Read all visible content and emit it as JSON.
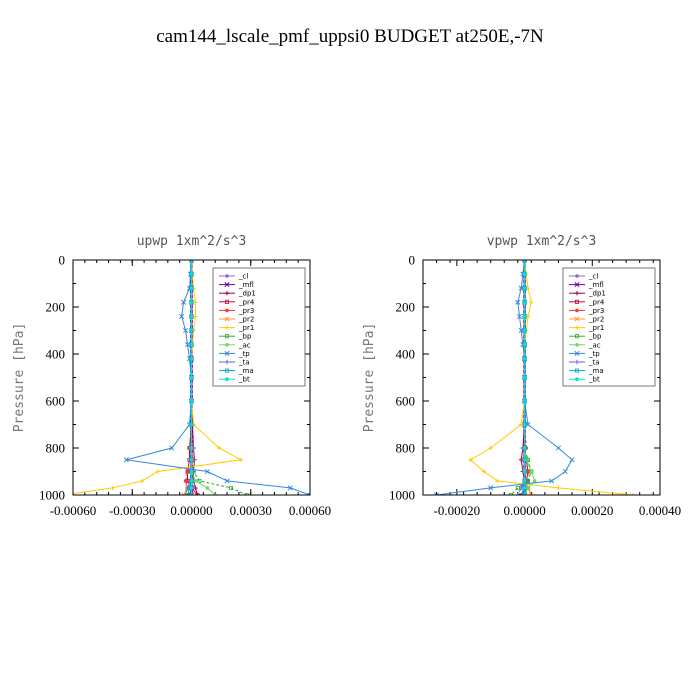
{
  "suptitle": "cam144_lscale_pmf_uppsi0  BUDGET at250E,-7N",
  "chart_data": [
    {
      "type": "line",
      "title": "upwp   1xm^2/s^3",
      "ylabel": "Pressure [hPa]",
      "xlabel": "",
      "y_inverted": true,
      "ylim": [
        0,
        1000
      ],
      "yticks": [
        0,
        200,
        400,
        600,
        800,
        1000
      ],
      "xlim": [
        -0.0006,
        0.0006
      ],
      "xticks": [
        -0.0006,
        -0.0003,
        0.0,
        0.0003,
        0.0006
      ],
      "xtick_labels": [
        "-0.00060",
        "-0.00030",
        "0.00000",
        "0.00030",
        "0.00060"
      ],
      "legend_position": "top-right",
      "series": [
        {
          "name": "_cl",
          "color": "#9966cc",
          "x": [
            0,
            0,
            0,
            0,
            0,
            0,
            0,
            0,
            0,
            0,
            0,
            0,
            0,
            0,
            0,
            0,
            0
          ],
          "y": [
            0,
            60,
            120,
            180,
            240,
            300,
            360,
            420,
            500,
            600,
            700,
            800,
            850,
            900,
            940,
            970,
            1000
          ]
        },
        {
          "name": "_mfl",
          "color": "#660099",
          "x": [
            0,
            0,
            0,
            0,
            0,
            0,
            0,
            0,
            0,
            0,
            0,
            0,
            0,
            0,
            0,
            0,
            0
          ],
          "y": [
            0,
            60,
            120,
            180,
            240,
            300,
            360,
            420,
            500,
            600,
            700,
            800,
            850,
            900,
            940,
            970,
            1000
          ]
        },
        {
          "name": "_dp1",
          "color": "#990055",
          "x": [
            0,
            0,
            0,
            0,
            0,
            0,
            0,
            0,
            0,
            0,
            5e-06,
            1e-05,
            1.5e-05,
            1e-05,
            1e-05,
            2e-05,
            3e-05
          ],
          "y": [
            0,
            60,
            120,
            180,
            240,
            300,
            360,
            420,
            500,
            600,
            700,
            800,
            850,
            900,
            940,
            970,
            1000
          ]
        },
        {
          "name": "_pr4",
          "color": "#cc0033",
          "x": [
            0,
            0,
            0,
            0,
            0,
            0,
            0,
            0,
            0,
            0,
            0,
            -1e-05,
            -1e-05,
            -2e-05,
            -2e-05,
            0,
            3e-05
          ],
          "y": [
            0,
            60,
            120,
            180,
            240,
            300,
            360,
            420,
            500,
            600,
            700,
            800,
            850,
            900,
            940,
            970,
            1000
          ]
        },
        {
          "name": "_pr3",
          "color": "#ff3333",
          "x": [
            0,
            0,
            0,
            0,
            0,
            0,
            0,
            0,
            0,
            0,
            0,
            -1e-05,
            1e-05,
            -2e-05,
            -3e-05,
            -2e-05,
            -1e-05
          ],
          "y": [
            0,
            60,
            120,
            180,
            240,
            300,
            360,
            420,
            500,
            600,
            700,
            800,
            850,
            900,
            940,
            970,
            1000
          ]
        },
        {
          "name": "_pr2",
          "color": "#ff9933",
          "x": [
            0,
            0,
            0,
            0,
            0,
            0,
            0,
            0,
            0,
            0,
            0,
            0,
            0,
            0,
            0,
            -2e-05,
            -4e-05
          ],
          "y": [
            0,
            60,
            120,
            180,
            240,
            300,
            360,
            420,
            500,
            600,
            700,
            800,
            850,
            900,
            940,
            970,
            1000
          ]
        },
        {
          "name": "_pr1",
          "color": "#ffcc00",
          "x": [
            0,
            5e-06,
            1e-05,
            2e-05,
            2e-05,
            1e-05,
            5e-06,
            0,
            0,
            0,
            1e-05,
            0.00014,
            0.00025,
            -0.00017,
            -0.00025,
            -0.0004,
            -0.00065
          ],
          "y": [
            0,
            60,
            120,
            180,
            240,
            300,
            360,
            420,
            500,
            600,
            700,
            800,
            850,
            900,
            940,
            970,
            1000
          ]
        },
        {
          "name": "_bp",
          "color": "#33aa33",
          "x": [
            0,
            0,
            0,
            0,
            0,
            0,
            0,
            0,
            0,
            0,
            0,
            0,
            0,
            1e-05,
            4e-05,
            0.0002,
            0.00028
          ],
          "y": [
            0,
            60,
            120,
            180,
            240,
            300,
            360,
            420,
            500,
            600,
            700,
            800,
            850,
            900,
            940,
            970,
            1000
          ]
        },
        {
          "name": "_ac",
          "color": "#66dd66",
          "x": [
            0,
            0,
            0,
            0,
            0,
            0,
            0,
            0,
            0,
            0,
            0,
            0,
            0,
            0,
            2e-05,
            8e-05,
            0.00012
          ],
          "y": [
            0,
            60,
            120,
            180,
            240,
            300,
            360,
            420,
            500,
            600,
            700,
            800,
            850,
            900,
            940,
            970,
            1000
          ]
        },
        {
          "name": "_tp",
          "color": "#3388dd",
          "x": [
            0,
            -5e-06,
            -1e-05,
            -4e-05,
            -5e-05,
            -3e-05,
            -2e-05,
            -1e-05,
            0,
            0,
            -1e-05,
            -0.0001,
            -0.00033,
            8e-05,
            0.00018,
            0.0005,
            0.0006
          ],
          "y": [
            0,
            60,
            120,
            180,
            240,
            300,
            360,
            420,
            500,
            600,
            700,
            800,
            850,
            900,
            940,
            970,
            1000
          ]
        },
        {
          "name": "_ta",
          "color": "#6666cc",
          "x": [
            0,
            0,
            0,
            0,
            0,
            0,
            0,
            0,
            0,
            0,
            0,
            0,
            0,
            0,
            -1e-05,
            -2e-05,
            -3e-05
          ],
          "y": [
            0,
            60,
            120,
            180,
            240,
            300,
            360,
            420,
            500,
            600,
            700,
            800,
            850,
            900,
            940,
            970,
            1000
          ]
        },
        {
          "name": "_ma",
          "color": "#00aacc",
          "x": [
            0,
            0,
            0,
            0,
            0,
            0,
            0,
            0,
            0,
            0,
            0,
            0,
            0,
            0,
            0,
            -1e-05,
            -2e-05
          ],
          "y": [
            0,
            60,
            120,
            180,
            240,
            300,
            360,
            420,
            500,
            600,
            700,
            800,
            850,
            900,
            940,
            970,
            1000
          ]
        },
        {
          "name": "_bt",
          "color": "#00dddd",
          "x": [
            0,
            0,
            0,
            0,
            0,
            0,
            0,
            0,
            0,
            0,
            0,
            0,
            0,
            0,
            0,
            0,
            0
          ],
          "y": [
            0,
            60,
            120,
            180,
            240,
            300,
            360,
            420,
            500,
            600,
            700,
            800,
            850,
            900,
            940,
            970,
            1000
          ]
        }
      ]
    },
    {
      "type": "line",
      "title": "vpwp   1xm^2/s^3",
      "ylabel": "Pressure [hPa]",
      "xlabel": "",
      "y_inverted": true,
      "ylim": [
        0,
        1000
      ],
      "yticks": [
        0,
        200,
        400,
        600,
        800,
        1000
      ],
      "xlim": [
        -0.0003,
        0.0004
      ],
      "xticks": [
        -0.0002,
        0.0,
        0.0002,
        0.0004
      ],
      "xtick_labels": [
        "-0.00020",
        "0.00000",
        "0.00020",
        "0.00040"
      ],
      "legend_position": "top-right",
      "series": [
        {
          "name": "_cl",
          "color": "#9966cc",
          "x": [
            0,
            0,
            0,
            0,
            0,
            0,
            0,
            0,
            0,
            0,
            0,
            0,
            0,
            0,
            0,
            0,
            0
          ],
          "y": [
            0,
            60,
            120,
            180,
            240,
            300,
            360,
            420,
            500,
            600,
            700,
            800,
            850,
            900,
            940,
            970,
            1000
          ]
        },
        {
          "name": "_mfl",
          "color": "#660099",
          "x": [
            0,
            0,
            0,
            0,
            0,
            0,
            0,
            0,
            0,
            0,
            0,
            0,
            0,
            0,
            0,
            0,
            0
          ],
          "y": [
            0,
            60,
            120,
            180,
            240,
            300,
            360,
            420,
            500,
            600,
            700,
            800,
            850,
            900,
            940,
            970,
            1000
          ]
        },
        {
          "name": "_dp1",
          "color": "#990055",
          "x": [
            0,
            0,
            0,
            0,
            0,
            0,
            0,
            0,
            0,
            0,
            0,
            -5e-06,
            -1e-05,
            -5e-06,
            0,
            1e-05,
            2e-05
          ],
          "y": [
            0,
            60,
            120,
            180,
            240,
            300,
            360,
            420,
            500,
            600,
            700,
            800,
            850,
            900,
            940,
            970,
            1000
          ]
        },
        {
          "name": "_pr4",
          "color": "#cc0033",
          "x": [
            0,
            0,
            0,
            0,
            0,
            0,
            0,
            0,
            0,
            0,
            0,
            0,
            5e-06,
            1e-05,
            5e-06,
            0,
            -1e-05
          ],
          "y": [
            0,
            60,
            120,
            180,
            240,
            300,
            360,
            420,
            500,
            600,
            700,
            800,
            850,
            900,
            940,
            970,
            1000
          ]
        },
        {
          "name": "_pr3",
          "color": "#ff3333",
          "x": [
            0,
            0,
            0,
            0,
            0,
            0,
            0,
            0,
            0,
            0,
            0,
            5e-06,
            -5e-06,
            1e-05,
            1e-05,
            0,
            -1e-05
          ],
          "y": [
            0,
            60,
            120,
            180,
            240,
            300,
            360,
            420,
            500,
            600,
            700,
            800,
            850,
            900,
            940,
            970,
            1000
          ]
        },
        {
          "name": "_pr2",
          "color": "#ff9933",
          "x": [
            0,
            0,
            0,
            0,
            0,
            0,
            0,
            0,
            0,
            0,
            0,
            0,
            0,
            0,
            0,
            1e-05,
            2e-05
          ],
          "y": [
            0,
            60,
            120,
            180,
            240,
            300,
            360,
            420,
            500,
            600,
            700,
            800,
            850,
            900,
            940,
            970,
            1000
          ]
        },
        {
          "name": "_pr1",
          "color": "#ffcc00",
          "x": [
            0,
            5e-06,
            1e-05,
            2e-05,
            1e-05,
            5e-06,
            0,
            0,
            0,
            0,
            -1e-05,
            -0.0001,
            -0.00016,
            -0.00012,
            -8e-05,
            0.0001,
            0.00032
          ],
          "y": [
            0,
            60,
            120,
            180,
            240,
            300,
            360,
            420,
            500,
            600,
            700,
            800,
            850,
            900,
            940,
            970,
            1000
          ]
        },
        {
          "name": "_bp",
          "color": "#33aa33",
          "x": [
            0,
            0,
            0,
            0,
            0,
            0,
            0,
            0,
            0,
            0,
            0,
            0,
            1e-05,
            2e-05,
            1e-05,
            -2e-05,
            -4e-05
          ],
          "y": [
            0,
            60,
            120,
            180,
            240,
            300,
            360,
            420,
            500,
            600,
            700,
            800,
            850,
            900,
            940,
            970,
            1000
          ]
        },
        {
          "name": "_ac",
          "color": "#66dd66",
          "x": [
            0,
            0,
            0,
            0,
            0,
            0,
            0,
            0,
            0,
            0,
            0,
            0,
            5e-06,
            2e-05,
            3e-05,
            1e-05,
            0
          ],
          "y": [
            0,
            60,
            120,
            180,
            240,
            300,
            360,
            420,
            500,
            600,
            700,
            800,
            850,
            900,
            940,
            970,
            1000
          ]
        },
        {
          "name": "_tp",
          "color": "#3388dd",
          "x": [
            0,
            -5e-06,
            -1e-05,
            -2e-05,
            -1.5e-05,
            -1e-05,
            -5e-06,
            0,
            0,
            0,
            1e-05,
            0.0001,
            0.00014,
            0.00012,
            8e-05,
            -0.0001,
            -0.00026
          ],
          "y": [
            0,
            60,
            120,
            180,
            240,
            300,
            360,
            420,
            500,
            600,
            700,
            800,
            850,
            900,
            940,
            970,
            1000
          ]
        },
        {
          "name": "_ta",
          "color": "#6666cc",
          "x": [
            0,
            0,
            0,
            0,
            0,
            0,
            0,
            0,
            0,
            0,
            0,
            0,
            0,
            0,
            0,
            -1e-05,
            -2e-05
          ],
          "y": [
            0,
            60,
            120,
            180,
            240,
            300,
            360,
            420,
            500,
            600,
            700,
            800,
            850,
            900,
            940,
            970,
            1000
          ]
        },
        {
          "name": "_ma",
          "color": "#00aacc",
          "x": [
            0,
            0,
            0,
            0,
            0,
            0,
            0,
            0,
            0,
            0,
            0,
            0,
            0,
            0,
            0,
            0,
            -1e-05
          ],
          "y": [
            0,
            60,
            120,
            180,
            240,
            300,
            360,
            420,
            500,
            600,
            700,
            800,
            850,
            900,
            940,
            970,
            1000
          ]
        },
        {
          "name": "_bt",
          "color": "#00dddd",
          "x": [
            0,
            0,
            0,
            0,
            0,
            0,
            0,
            0,
            0,
            0,
            0,
            0,
            0,
            0,
            0,
            0,
            0
          ],
          "y": [
            0,
            60,
            120,
            180,
            240,
            300,
            360,
            420,
            500,
            600,
            700,
            800,
            850,
            900,
            940,
            970,
            1000
          ]
        }
      ]
    }
  ]
}
